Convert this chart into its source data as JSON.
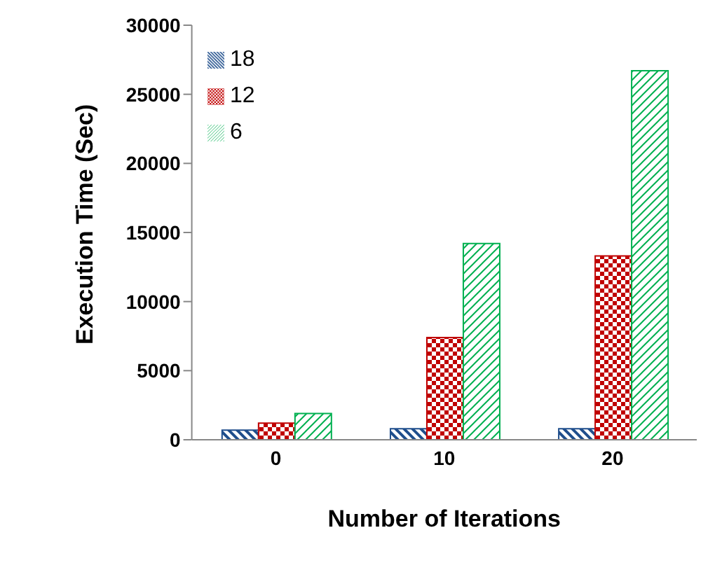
{
  "chart_data": {
    "type": "bar",
    "xlabel": "Number of Iterations",
    "ylabel": "Execution Time (Sec)",
    "categories": [
      "0",
      "10",
      "20"
    ],
    "series": [
      {
        "name": "18",
        "color": "#1f4e8c",
        "values": [
          700,
          800,
          800
        ]
      },
      {
        "name": "12",
        "color": "#c00000",
        "values": [
          1200,
          7400,
          13300
        ]
      },
      {
        "name": "6",
        "color": "#00b050",
        "values": [
          1900,
          14200,
          26700
        ]
      }
    ],
    "ylim": [
      0,
      30000
    ],
    "yticks": [
      0,
      5000,
      10000,
      15000,
      20000,
      25000,
      30000
    ],
    "grid": false,
    "legend": "top left"
  }
}
